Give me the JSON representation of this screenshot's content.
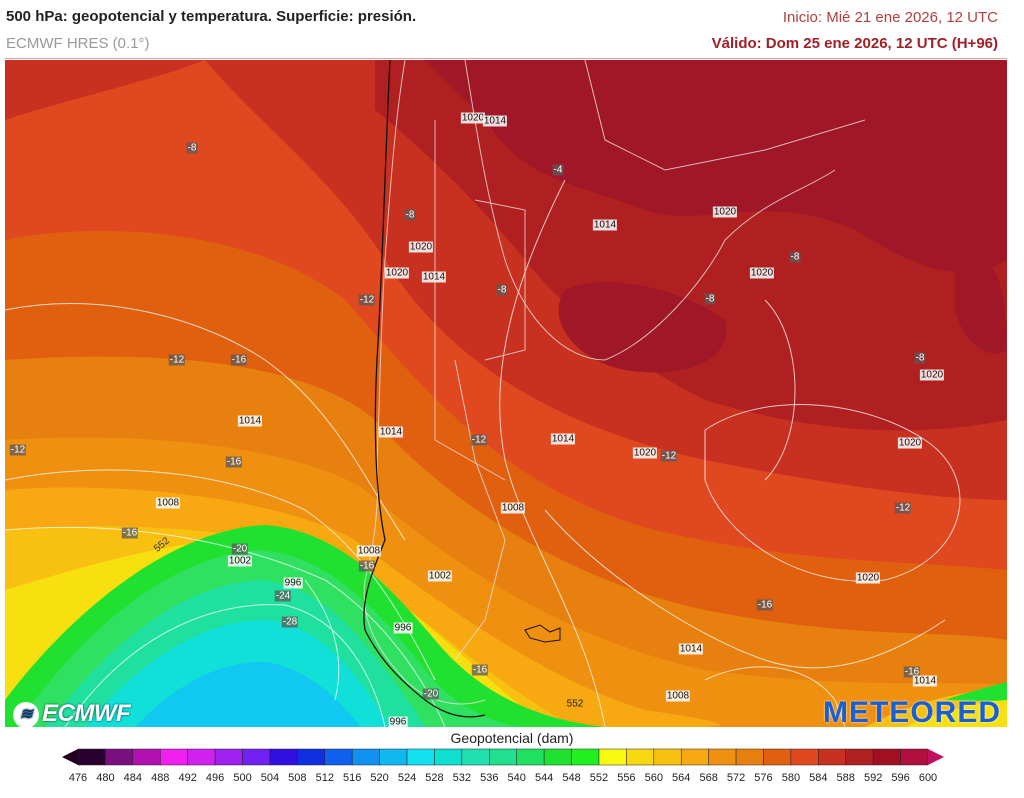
{
  "header": {
    "title": "500 hPa: geopotencial y temperatura. Superficie: presión.",
    "model": "ECMWF HRES (0.1°)",
    "init": "Inicio: Mié 21 ene 2026, 12 UTC",
    "valid": "Válido: Dom 25 ene 2026, 12 UTC (H+96)"
  },
  "map": {
    "labels": [
      {
        "text": "-8",
        "type": "temp"
      },
      {
        "text": "1020",
        "type": "pres"
      },
      {
        "text": "1014",
        "type": "pres"
      },
      {
        "text": "-4",
        "type": "temp"
      },
      {
        "text": "-8",
        "type": "temp"
      },
      {
        "text": "1014",
        "type": "pres"
      },
      {
        "text": "1020",
        "type": "pres"
      },
      {
        "text": "1020",
        "type": "pres"
      },
      {
        "text": "1020",
        "type": "pres"
      },
      {
        "text": "1014",
        "type": "pres"
      },
      {
        "text": "-8",
        "type": "temp"
      },
      {
        "text": "-8",
        "type": "temp"
      },
      {
        "text": "1020",
        "type": "pres"
      },
      {
        "text": "-8",
        "type": "temp"
      },
      {
        "text": "-12",
        "type": "temp"
      },
      {
        "text": "-12",
        "type": "temp"
      },
      {
        "text": "-16",
        "type": "temp"
      },
      {
        "text": "-8",
        "type": "temp"
      },
      {
        "text": "1020",
        "type": "pres"
      },
      {
        "text": "1014",
        "type": "pres"
      },
      {
        "text": "1014",
        "type": "pres"
      },
      {
        "text": "1014",
        "type": "pres"
      },
      {
        "text": "1020",
        "type": "pres"
      },
      {
        "text": "-12",
        "type": "temp"
      },
      {
        "text": "-12",
        "type": "temp"
      },
      {
        "text": "1020",
        "type": "pres"
      },
      {
        "text": "-12",
        "type": "temp"
      },
      {
        "text": "-16",
        "type": "temp"
      },
      {
        "text": "1008",
        "type": "pres"
      },
      {
        "text": "1008",
        "type": "pres"
      },
      {
        "text": "-12",
        "type": "temp"
      },
      {
        "text": "-16",
        "type": "temp"
      },
      {
        "text": "-20",
        "type": "temp"
      },
      {
        "text": "1008",
        "type": "pres"
      },
      {
        "text": "1002",
        "type": "pres"
      },
      {
        "text": "-16",
        "type": "temp"
      },
      {
        "text": "1002",
        "type": "pres"
      },
      {
        "text": "1020",
        "type": "pres"
      },
      {
        "text": "996",
        "type": "pres"
      },
      {
        "text": "-24",
        "type": "temp"
      },
      {
        "text": "-16",
        "type": "temp"
      },
      {
        "text": "-28",
        "type": "temp"
      },
      {
        "text": "996",
        "type": "pres"
      },
      {
        "text": "1014",
        "type": "pres"
      },
      {
        "text": "-16",
        "type": "temp"
      },
      {
        "text": "1008",
        "type": "pres"
      },
      {
        "text": "-20",
        "type": "temp"
      },
      {
        "text": "-16",
        "type": "temp"
      },
      {
        "text": "1014",
        "type": "pres"
      },
      {
        "text": "552",
        "type": "height"
      },
      {
        "text": "552",
        "type": "height"
      },
      {
        "text": "996",
        "type": "pres"
      }
    ],
    "logo_left": "ECMWF",
    "logo_right": "METEORED"
  },
  "colorbar": {
    "title": "Geopotencial (dam)",
    "ticks": [
      "476",
      "480",
      "484",
      "488",
      "492",
      "496",
      "500",
      "504",
      "508",
      "512",
      "516",
      "520",
      "524",
      "528",
      "532",
      "536",
      "540",
      "544",
      "548",
      "552",
      "556",
      "560",
      "564",
      "568",
      "572",
      "576",
      "580",
      "584",
      "588",
      "592",
      "596",
      "600"
    ],
    "colors": [
      "#2a0030",
      "#7a1080",
      "#b010b0",
      "#f020f0",
      "#d020f0",
      "#a020f0",
      "#7020f0",
      "#3010e0",
      "#1030e0",
      "#1060f0",
      "#1090f0",
      "#10b8f0",
      "#10e0f0",
      "#10e0d0",
      "#20e0b0",
      "#20e090",
      "#20e060",
      "#20e030",
      "#20f020",
      "#f8f810",
      "#f8d810",
      "#f8c010",
      "#f8a810",
      "#f09010",
      "#e88010",
      "#e06010",
      "#e04820",
      "#c83020",
      "#b02020",
      "#a01020",
      "#b01040"
    ],
    "under_color": "#200020",
    "over_color": "#c01060"
  }
}
